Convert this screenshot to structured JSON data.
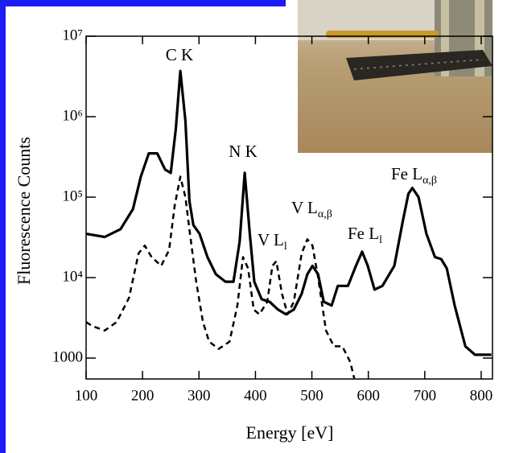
{
  "chart_data": {
    "type": "line",
    "x_label": "Energy [eV]",
    "y_label": "Fluorescence Counts",
    "log_y": true,
    "xlim": [
      100,
      820
    ],
    "xticks": [
      100,
      200,
      300,
      400,
      500,
      600,
      700,
      800
    ],
    "ylim": [
      550,
      10000000
    ],
    "yticks": [
      1000,
      {
        "value": 10000,
        "label": "10⁴"
      },
      {
        "value": 100000,
        "label": "10⁵"
      },
      {
        "value": 1000000,
        "label": "10⁶"
      },
      {
        "value": 10000000,
        "label": "10⁷"
      }
    ],
    "series": [
      {
        "color": "#000000",
        "style": "solid",
        "x": [
          100,
          133,
          161,
          183,
          197,
          211,
          226,
          240,
          250,
          259,
          267,
          276,
          283,
          290,
          301,
          315,
          330,
          347,
          361,
          372,
          381,
          390,
          398,
          411,
          425,
          440,
          454,
          468,
          482,
          492,
          501,
          511,
          521,
          535,
          546,
          564,
          578,
          589,
          599,
          611,
          625,
          646,
          661,
          671,
          678,
          689,
          703,
          718,
          729,
          739,
          753,
          772,
          789,
          818
        ],
        "values": [
          35000,
          32000,
          40000,
          71000,
          180000,
          350000,
          350000,
          220000,
          200000,
          710000,
          3700000,
          890000,
          89000,
          45000,
          35000,
          18000,
          11000,
          8900,
          8900,
          28000,
          200000,
          35000,
          8900,
          5400,
          5000,
          4000,
          3500,
          4000,
          6300,
          11000,
          14000,
          11000,
          5000,
          4500,
          7900,
          7900,
          14000,
          21000,
          14000,
          7100,
          7900,
          14000,
          50000,
          110000,
          130000,
          100000,
          35000,
          18000,
          17000,
          13000,
          4500,
          1400,
          1100,
          1100
        ]
      },
      {
        "color": "#000000",
        "style": "dashed",
        "x": [
          100,
          111,
          133,
          154,
          176,
          193,
          204,
          216,
          233,
          247,
          257,
          267,
          276,
          284,
          295,
          307,
          318,
          335,
          354,
          368,
          378,
          387,
          397,
          407,
          421,
          430,
          437,
          447,
          457,
          468,
          482,
          492,
          501,
          511,
          525,
          539,
          554,
          568,
          575
        ],
        "values": [
          2800,
          2500,
          2200,
          2800,
          5600,
          20000,
          25000,
          18000,
          14000,
          22000,
          79000,
          180000,
          100000,
          35000,
          8900,
          2800,
          1600,
          1300,
          1600,
          4500,
          18000,
          13000,
          4000,
          3500,
          5000,
          14000,
          16000,
          6300,
          3500,
          5000,
          20000,
          30000,
          25000,
          10000,
          2200,
          1400,
          1400,
          890,
          560
        ]
      }
    ],
    "annotations": [
      {
        "text": "C K"
      },
      {
        "text": "N K"
      },
      {
        "text": "V L",
        "sub": "l"
      },
      {
        "text": "V L",
        "sub": "α,β"
      },
      {
        "text": "Fe L",
        "sub": "l"
      },
      {
        "text": "Fe L",
        "sub": "α,β"
      }
    ]
  }
}
